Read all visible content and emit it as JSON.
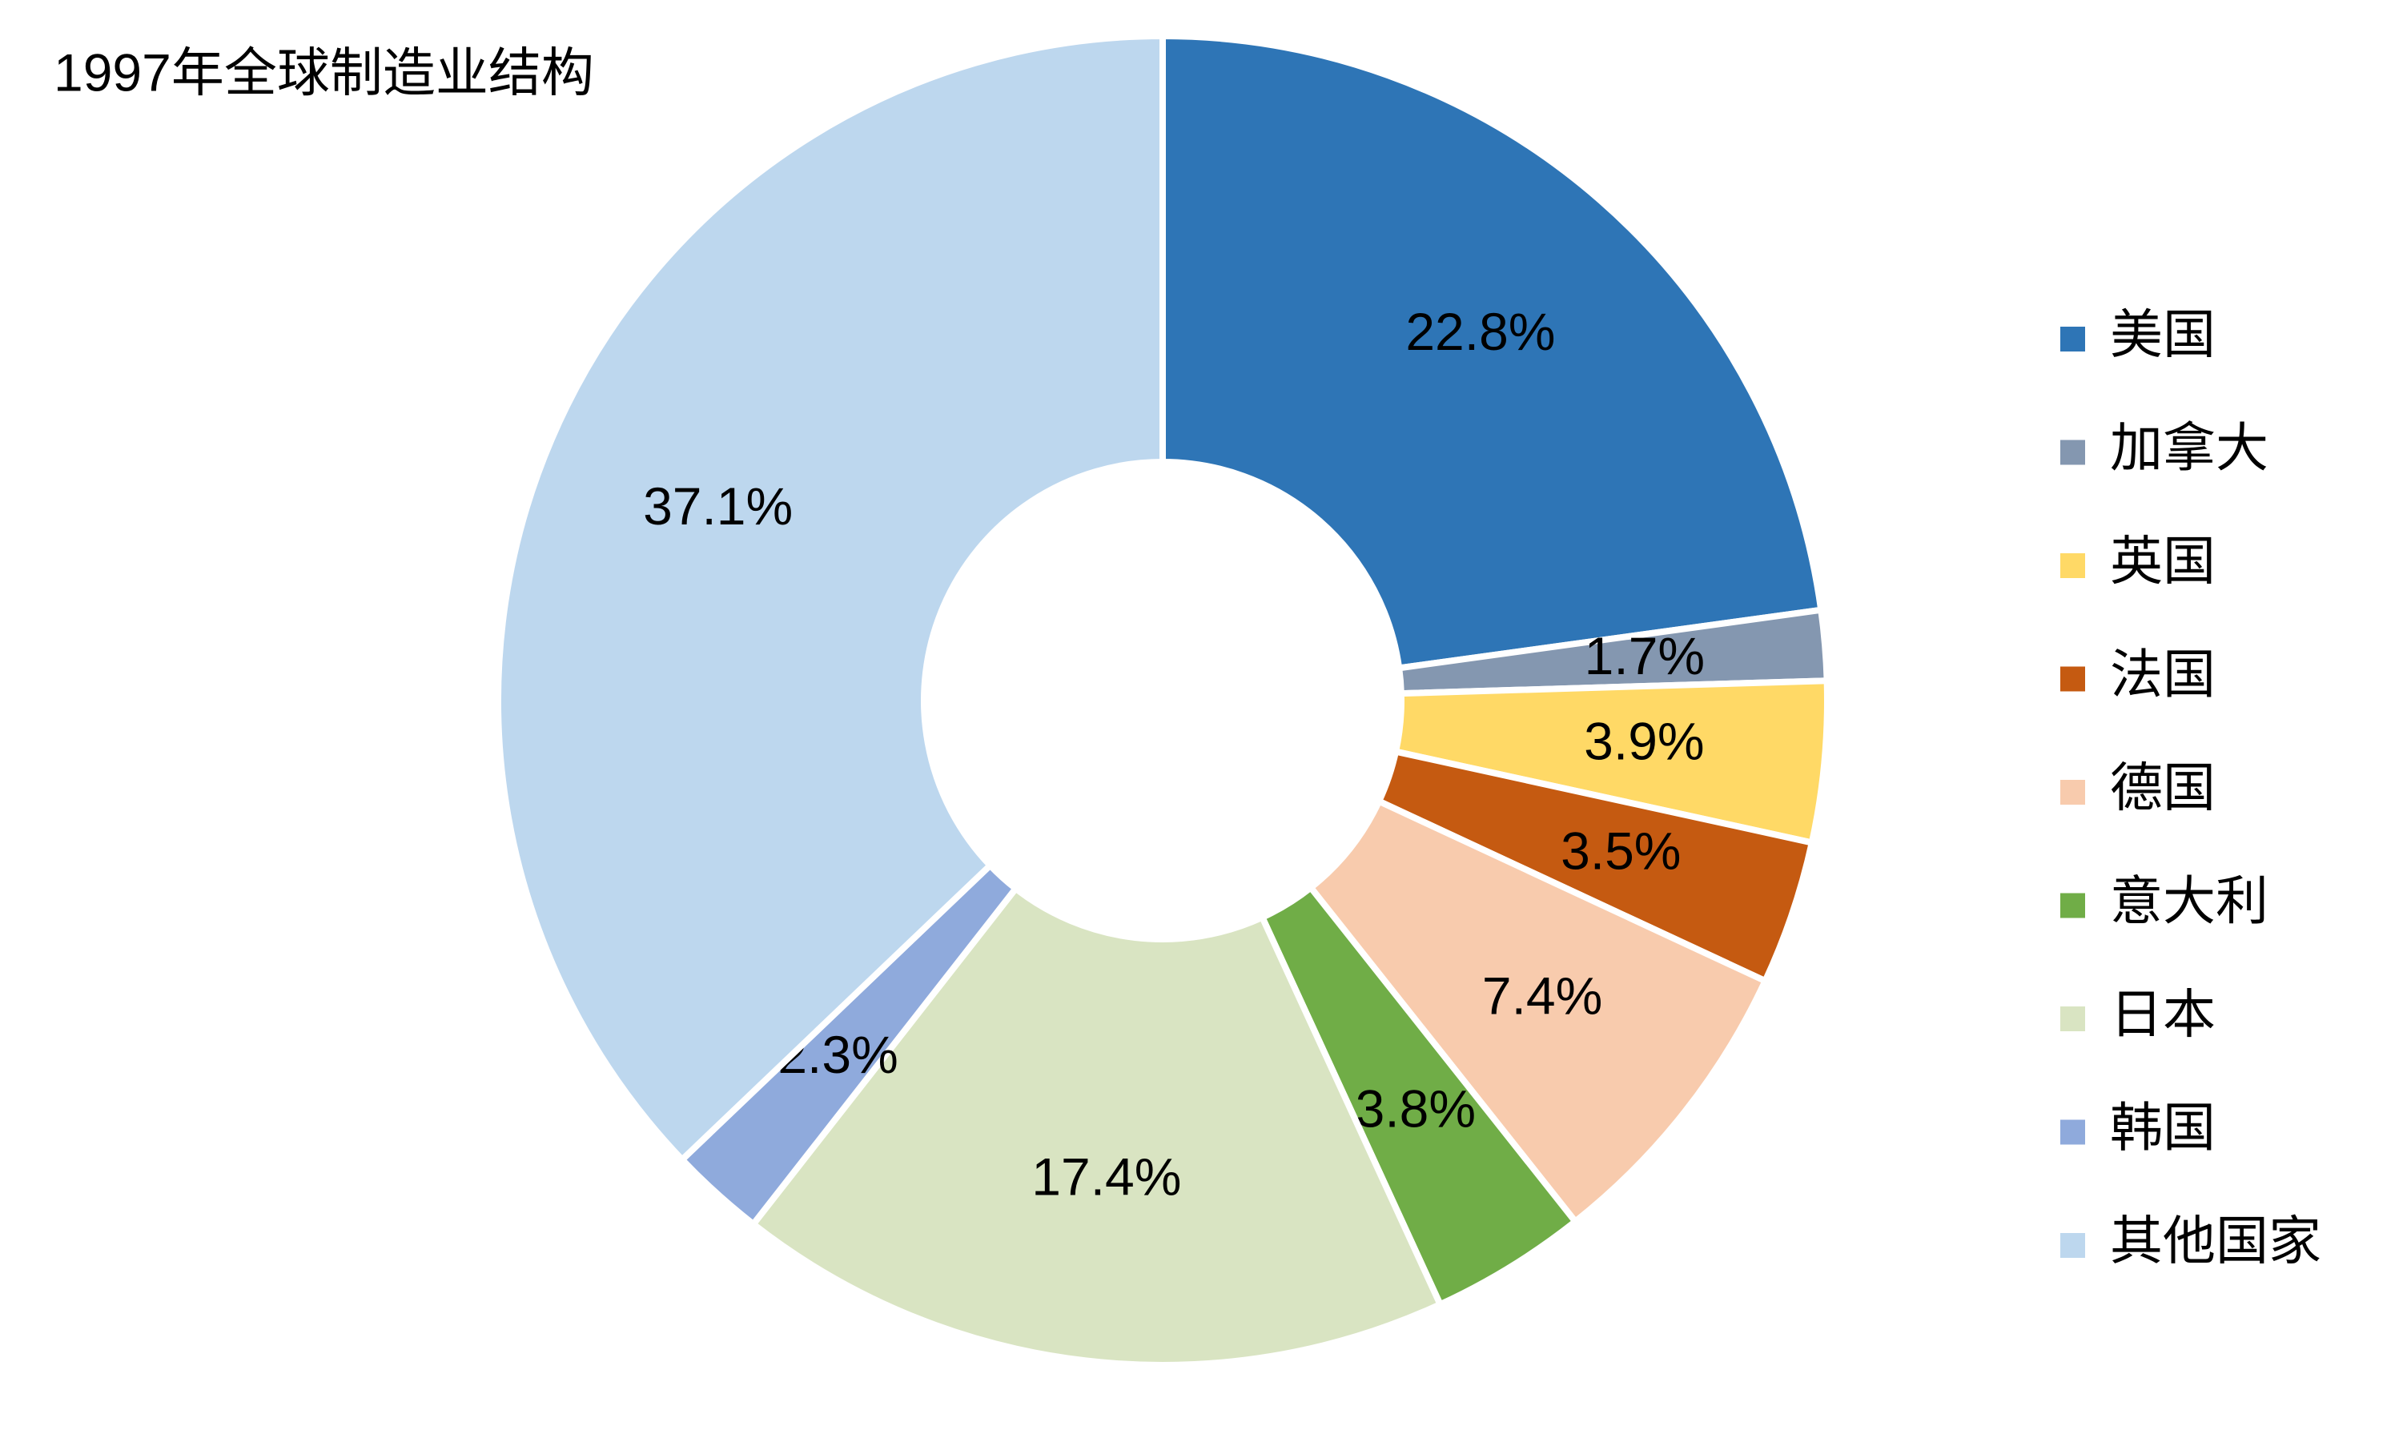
{
  "chart_data": {
    "type": "donut",
    "title": "1997年全球制造业结构",
    "categories": [
      "美国",
      "加拿大",
      "英国",
      "法国",
      "德国",
      "意大利",
      "日本",
      "韩国",
      "其他国家"
    ],
    "values": [
      22.8,
      1.7,
      3.9,
      3.5,
      7.4,
      3.8,
      17.4,
      2.3,
      37.1
    ],
    "value_labels": [
      "22.8%",
      "1.7%",
      "3.9%",
      "3.5%",
      "7.4%",
      "3.8%",
      "17.4%",
      "2.3%",
      "37.1%"
    ],
    "colors": [
      "#2e75b6",
      "#8497b0",
      "#ffd966",
      "#c55a11",
      "#f8cbad",
      "#70ad47",
      "#d9e4c2",
      "#8faadc",
      "#bdd7ee"
    ],
    "legend": "right"
  }
}
